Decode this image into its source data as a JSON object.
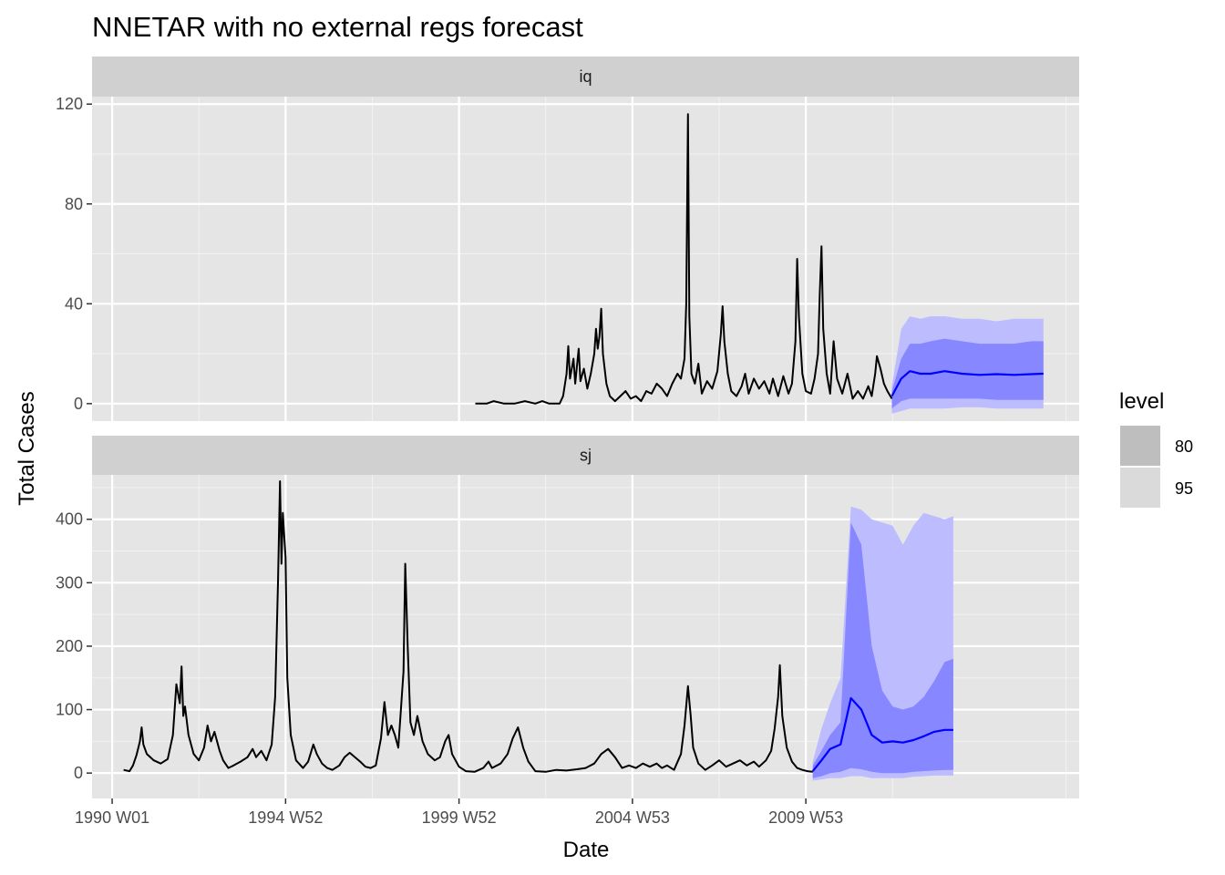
{
  "chart_data": {
    "type": "line",
    "title": "NNETAR with no external regs forecast",
    "xlabel": "Date",
    "ylabel": "Total Cases",
    "x_ticks": [
      "1990 W01",
      "1994 W52",
      "1999 W52",
      "2004 W53",
      "2009 W53"
    ],
    "legend": {
      "title": "level",
      "placement": "right",
      "entries": [
        {
          "label": "80",
          "color": "#bebebe"
        },
        {
          "label": "95",
          "color": "#dadada"
        }
      ]
    },
    "colors": {
      "history": "#000000",
      "forecast_mean": "#0000ff",
      "interval_95": "#bcbcff",
      "interval_80": "#8787ff",
      "panel_bg": "#e5e5e5",
      "strip_bg": "#d0d0d0"
    },
    "panels": [
      {
        "strip": "iq",
        "ylim": [
          -7,
          123
        ],
        "yticks": [
          "0",
          "40",
          "80",
          "120"
        ],
        "ytick_values": [
          0,
          40,
          80,
          120
        ],
        "history": [
          [
            2000.47,
            0
          ],
          [
            2000.8,
            0
          ],
          [
            2001.0,
            1
          ],
          [
            2001.3,
            0
          ],
          [
            2001.6,
            0
          ],
          [
            2001.9,
            1
          ],
          [
            2002.2,
            0
          ],
          [
            2002.4,
            1
          ],
          [
            2002.6,
            0
          ],
          [
            2002.9,
            0
          ],
          [
            2003.0,
            3
          ],
          [
            2003.1,
            12
          ],
          [
            2003.15,
            23
          ],
          [
            2003.2,
            10
          ],
          [
            2003.3,
            18
          ],
          [
            2003.35,
            8
          ],
          [
            2003.45,
            22
          ],
          [
            2003.5,
            9
          ],
          [
            2003.6,
            14
          ],
          [
            2003.7,
            6
          ],
          [
            2003.8,
            12
          ],
          [
            2003.9,
            20
          ],
          [
            2003.95,
            30
          ],
          [
            2004.0,
            22
          ],
          [
            2004.05,
            27
          ],
          [
            2004.1,
            38
          ],
          [
            2004.15,
            20
          ],
          [
            2004.25,
            8
          ],
          [
            2004.35,
            3
          ],
          [
            2004.5,
            1
          ],
          [
            2004.65,
            3
          ],
          [
            2004.8,
            5
          ],
          [
            2004.95,
            2
          ],
          [
            2005.1,
            3
          ],
          [
            2005.25,
            1
          ],
          [
            2005.4,
            5
          ],
          [
            2005.55,
            4
          ],
          [
            2005.7,
            8
          ],
          [
            2005.85,
            6
          ],
          [
            2006.0,
            3
          ],
          [
            2006.15,
            8
          ],
          [
            2006.3,
            12
          ],
          [
            2006.4,
            10
          ],
          [
            2006.5,
            18
          ],
          [
            2006.55,
            40
          ],
          [
            2006.6,
            116
          ],
          [
            2006.64,
            35
          ],
          [
            2006.7,
            12
          ],
          [
            2006.8,
            8
          ],
          [
            2006.9,
            16
          ],
          [
            2007.0,
            4
          ],
          [
            2007.15,
            9
          ],
          [
            2007.3,
            6
          ],
          [
            2007.45,
            13
          ],
          [
            2007.55,
            28
          ],
          [
            2007.6,
            39
          ],
          [
            2007.65,
            25
          ],
          [
            2007.75,
            12
          ],
          [
            2007.85,
            5
          ],
          [
            2008.0,
            3
          ],
          [
            2008.15,
            7
          ],
          [
            2008.25,
            12
          ],
          [
            2008.35,
            4
          ],
          [
            2008.5,
            10
          ],
          [
            2008.65,
            6
          ],
          [
            2008.8,
            9
          ],
          [
            2008.95,
            4
          ],
          [
            2009.05,
            10
          ],
          [
            2009.2,
            3
          ],
          [
            2009.35,
            11
          ],
          [
            2009.5,
            4
          ],
          [
            2009.6,
            8
          ],
          [
            2009.7,
            25
          ],
          [
            2009.75,
            58
          ],
          [
            2009.8,
            35
          ],
          [
            2009.9,
            12
          ],
          [
            2010.0,
            5
          ],
          [
            2010.15,
            4
          ],
          [
            2010.25,
            10
          ],
          [
            2010.35,
            20
          ],
          [
            2010.4,
            44
          ],
          [
            2010.45,
            63
          ],
          [
            2010.5,
            30
          ],
          [
            2010.6,
            12
          ],
          [
            2010.7,
            4
          ],
          [
            2010.8,
            25
          ],
          [
            2010.9,
            10
          ],
          [
            2011.05,
            4
          ],
          [
            2011.2,
            12
          ],
          [
            2011.35,
            2
          ],
          [
            2011.5,
            5
          ],
          [
            2011.65,
            2
          ],
          [
            2011.8,
            7
          ],
          [
            2011.9,
            3
          ],
          [
            2012.0,
            12
          ],
          [
            2012.05,
            19
          ],
          [
            2012.15,
            14
          ],
          [
            2012.25,
            8
          ],
          [
            2012.35,
            5
          ],
          [
            2012.48,
            2
          ]
        ],
        "forecast": {
          "x": [
            2012.48,
            2012.75,
            2013.0,
            2013.3,
            2013.6,
            2014.0,
            2014.5,
            2015.0,
            2015.5,
            2016.0,
            2016.5,
            2016.85
          ],
          "mean": [
            3,
            10,
            13,
            12,
            12,
            13,
            12,
            11.5,
            11.8,
            11.5,
            11.8,
            12
          ],
          "lo80": [
            -2,
            1,
            2,
            2,
            2,
            2,
            2,
            2,
            1.5,
            1.5,
            1.5,
            1.5
          ],
          "hi80": [
            5,
            18,
            24,
            24,
            25,
            26,
            25,
            24,
            24,
            24,
            25,
            25
          ],
          "lo95": [
            -4,
            -3,
            -2,
            -2,
            -2,
            -2,
            -1.5,
            -1.5,
            -2,
            -2,
            -2,
            -2
          ],
          "hi95": [
            7,
            30,
            35,
            34,
            35,
            35,
            34,
            34,
            33,
            34,
            34,
            34
          ]
        }
      },
      {
        "strip": "sj",
        "ylim": [
          -40,
          470
        ],
        "yticks": [
          "0",
          "100",
          "200",
          "300",
          "400"
        ],
        "ytick_values": [
          0,
          100,
          200,
          300,
          400
        ],
        "history": [
          [
            1990.33,
            5
          ],
          [
            1990.5,
            3
          ],
          [
            1990.6,
            12
          ],
          [
            1990.7,
            28
          ],
          [
            1990.8,
            50
          ],
          [
            1990.85,
            72
          ],
          [
            1990.9,
            45
          ],
          [
            1991.0,
            30
          ],
          [
            1991.2,
            20
          ],
          [
            1991.4,
            15
          ],
          [
            1991.6,
            22
          ],
          [
            1991.75,
            60
          ],
          [
            1991.85,
            140
          ],
          [
            1991.95,
            110
          ],
          [
            1992.0,
            168
          ],
          [
            1992.05,
            90
          ],
          [
            1992.1,
            105
          ],
          [
            1992.2,
            60
          ],
          [
            1992.35,
            30
          ],
          [
            1992.5,
            20
          ],
          [
            1992.65,
            40
          ],
          [
            1992.75,
            75
          ],
          [
            1992.85,
            50
          ],
          [
            1992.95,
            65
          ],
          [
            1993.1,
            35
          ],
          [
            1993.2,
            20
          ],
          [
            1993.35,
            8
          ],
          [
            1993.5,
            12
          ],
          [
            1993.7,
            18
          ],
          [
            1993.9,
            25
          ],
          [
            1994.05,
            38
          ],
          [
            1994.15,
            25
          ],
          [
            1994.3,
            35
          ],
          [
            1994.45,
            20
          ],
          [
            1994.6,
            45
          ],
          [
            1994.7,
            120
          ],
          [
            1994.78,
            300
          ],
          [
            1994.84,
            460
          ],
          [
            1994.88,
            330
          ],
          [
            1994.92,
            410
          ],
          [
            1995.0,
            340
          ],
          [
            1995.05,
            150
          ],
          [
            1995.15,
            60
          ],
          [
            1995.3,
            20
          ],
          [
            1995.5,
            8
          ],
          [
            1995.65,
            18
          ],
          [
            1995.8,
            45
          ],
          [
            1995.9,
            30
          ],
          [
            1996.05,
            15
          ],
          [
            1996.2,
            8
          ],
          [
            1996.35,
            5
          ],
          [
            1996.55,
            12
          ],
          [
            1996.7,
            25
          ],
          [
            1996.85,
            32
          ],
          [
            1997.0,
            25
          ],
          [
            1997.15,
            18
          ],
          [
            1997.3,
            10
          ],
          [
            1997.45,
            8
          ],
          [
            1997.6,
            12
          ],
          [
            1997.75,
            55
          ],
          [
            1997.85,
            112
          ],
          [
            1997.95,
            60
          ],
          [
            1998.05,
            75
          ],
          [
            1998.15,
            60
          ],
          [
            1998.25,
            40
          ],
          [
            1998.4,
            160
          ],
          [
            1998.45,
            330
          ],
          [
            1998.52,
            200
          ],
          [
            1998.6,
            80
          ],
          [
            1998.7,
            60
          ],
          [
            1998.8,
            90
          ],
          [
            1998.95,
            50
          ],
          [
            1999.1,
            30
          ],
          [
            1999.3,
            20
          ],
          [
            1999.45,
            25
          ],
          [
            1999.6,
            50
          ],
          [
            1999.7,
            60
          ],
          [
            1999.8,
            30
          ],
          [
            2000.0,
            10
          ],
          [
            2000.2,
            3
          ],
          [
            2000.45,
            2
          ],
          [
            2000.7,
            8
          ],
          [
            2000.85,
            18
          ],
          [
            2000.95,
            8
          ],
          [
            2001.2,
            15
          ],
          [
            2001.4,
            30
          ],
          [
            2001.55,
            55
          ],
          [
            2001.7,
            72
          ],
          [
            2001.85,
            40
          ],
          [
            2002.0,
            18
          ],
          [
            2002.2,
            3
          ],
          [
            2002.5,
            2
          ],
          [
            2002.8,
            5
          ],
          [
            2003.1,
            4
          ],
          [
            2003.4,
            6
          ],
          [
            2003.65,
            8
          ],
          [
            2003.9,
            15
          ],
          [
            2004.1,
            30
          ],
          [
            2004.3,
            38
          ],
          [
            2004.5,
            25
          ],
          [
            2004.7,
            8
          ],
          [
            2004.9,
            12
          ],
          [
            2005.1,
            8
          ],
          [
            2005.3,
            15
          ],
          [
            2005.5,
            10
          ],
          [
            2005.7,
            15
          ],
          [
            2005.85,
            8
          ],
          [
            2006.0,
            12
          ],
          [
            2006.2,
            5
          ],
          [
            2006.4,
            30
          ],
          [
            2006.5,
            75
          ],
          [
            2006.6,
            137
          ],
          [
            2006.68,
            90
          ],
          [
            2006.75,
            40
          ],
          [
            2006.9,
            15
          ],
          [
            2007.1,
            5
          ],
          [
            2007.3,
            12
          ],
          [
            2007.5,
            20
          ],
          [
            2007.7,
            10
          ],
          [
            2007.9,
            15
          ],
          [
            2008.1,
            20
          ],
          [
            2008.3,
            12
          ],
          [
            2008.5,
            18
          ],
          [
            2008.65,
            10
          ],
          [
            2008.85,
            20
          ],
          [
            2009.0,
            35
          ],
          [
            2009.1,
            70
          ],
          [
            2009.2,
            120
          ],
          [
            2009.25,
            170
          ],
          [
            2009.32,
            90
          ],
          [
            2009.45,
            40
          ],
          [
            2009.6,
            18
          ],
          [
            2009.75,
            8
          ],
          [
            2009.9,
            5
          ],
          [
            2010.05,
            3
          ],
          [
            2010.2,
            2
          ]
        ],
        "forecast": {
          "x": [
            2010.2,
            2010.45,
            2010.7,
            2011.0,
            2011.3,
            2011.6,
            2011.9,
            2012.2,
            2012.5,
            2012.8,
            2013.1,
            2013.4,
            2013.7,
            2014.0,
            2014.25
          ],
          "mean": [
            3,
            20,
            38,
            45,
            118,
            100,
            60,
            48,
            50,
            48,
            52,
            58,
            65,
            68,
            68
          ],
          "lo80": [
            -8,
            -5,
            0,
            2,
            8,
            6,
            2,
            0,
            0,
            0,
            2,
            3,
            4,
            5,
            5
          ],
          "hi80": [
            12,
            35,
            60,
            80,
            395,
            360,
            200,
            130,
            105,
            100,
            105,
            120,
            145,
            175,
            180
          ],
          "lo95": [
            -12,
            -10,
            -8,
            -8,
            -5,
            -5,
            -8,
            -8,
            -8,
            -8,
            -6,
            -5,
            -4,
            -4,
            -4
          ],
          "hi95": [
            18,
            70,
            110,
            150,
            420,
            415,
            400,
            395,
            390,
            360,
            390,
            410,
            405,
            400,
            405
          ]
        }
      }
    ]
  }
}
